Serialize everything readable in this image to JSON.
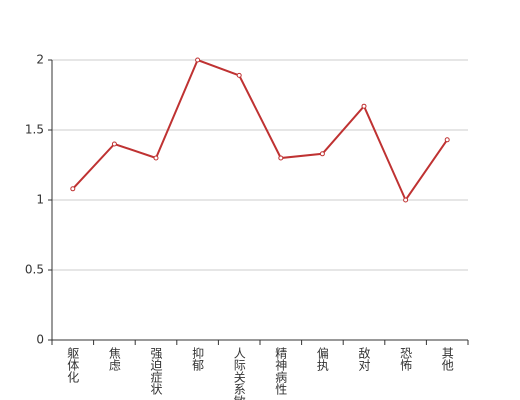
{
  "chart_data": {
    "type": "line",
    "categories": [
      "躯体化",
      "焦虑",
      "强迫症状",
      "抑郁",
      "人际关系敏感",
      "精神病性",
      "偏执",
      "敌对",
      "恐怖",
      "其他"
    ],
    "values": [
      1.08,
      1.4,
      1.3,
      2.0,
      1.89,
      1.3,
      1.33,
      1.67,
      1.0,
      1.43
    ],
    "color": "#bf3232",
    "ylim": [
      0,
      2
    ],
    "yticks": [
      0,
      0.5,
      1,
      1.5,
      2
    ],
    "grid": true
  }
}
